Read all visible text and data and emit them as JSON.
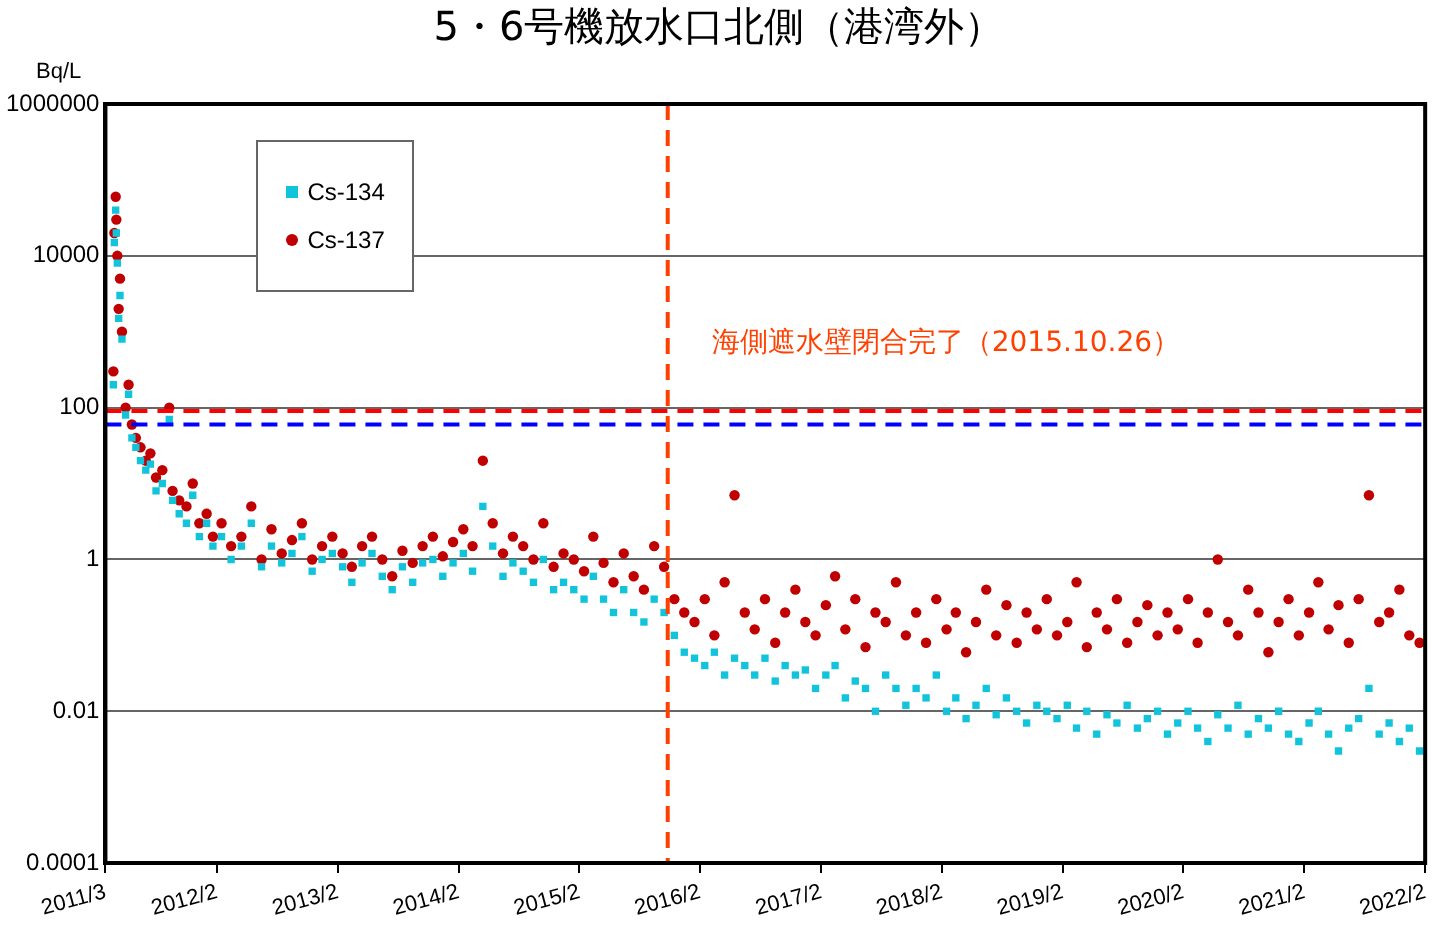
{
  "chart_data": {
    "type": "scatter",
    "title": "5・6号機放水口北側（港湾外）",
    "ylabel": "Bq/L",
    "log": "y",
    "grid": "y",
    "legend": "top left",
    "xlim": [
      "2011-03-01",
      "2022-02-01"
    ],
    "xticks": [
      {
        "value": "2011-03-01",
        "label": "2011/3"
      },
      {
        "value": "2012-02-01",
        "label": "2012/2"
      },
      {
        "value": "2013-02-01",
        "label": "2013/2"
      },
      {
        "value": "2014-02-01",
        "label": "2014/2"
      },
      {
        "value": "2015-02-01",
        "label": "2015/2"
      },
      {
        "value": "2016-02-01",
        "label": "2016/2"
      },
      {
        "value": "2017-02-01",
        "label": "2017/2"
      },
      {
        "value": "2018-02-01",
        "label": "2018/2"
      },
      {
        "value": "2019-02-01",
        "label": "2019/2"
      },
      {
        "value": "2020-02-01",
        "label": "2020/2"
      },
      {
        "value": "2021-02-01",
        "label": "2021/2"
      },
      {
        "value": "2022-02-01",
        "label": "2022/2"
      }
    ],
    "ylim": [
      0.0001,
      1000000
    ],
    "yticks": [
      0.0001,
      0.01,
      1,
      100,
      10000,
      1000000
    ],
    "x": [
      "2011-03-25",
      "2011-03-28",
      "2011-04-01",
      "2011-04-03",
      "2011-04-06",
      "2011-04-10",
      "2011-04-14",
      "2011-04-20",
      "2011-05-01",
      "2011-05-10",
      "2011-05-20",
      "2011-06-01",
      "2011-06-15",
      "2011-07-01",
      "2011-07-15",
      "2011-08-01",
      "2011-08-20",
      "2011-09-10",
      "2011-09-20",
      "2011-10-10",
      "2011-11-01",
      "2011-11-20",
      "2011-12-10",
      "2012-01-01",
      "2012-01-20",
      "2012-02-15",
      "2012-03-15",
      "2012-04-15",
      "2012-05-15",
      "2012-06-15",
      "2012-07-15",
      "2012-08-15",
      "2012-09-15",
      "2012-10-15",
      "2012-11-15",
      "2012-12-15",
      "2013-01-15",
      "2013-02-15",
      "2013-03-15",
      "2013-04-15",
      "2013-05-15",
      "2013-06-15",
      "2013-07-15",
      "2013-08-15",
      "2013-09-15",
      "2013-10-15",
      "2013-11-15",
      "2013-12-15",
      "2014-01-15",
      "2014-02-15",
      "2014-03-15",
      "2014-04-15",
      "2014-05-15",
      "2014-06-15",
      "2014-07-15",
      "2014-08-15",
      "2014-09-15",
      "2014-10-15",
      "2014-11-15",
      "2014-12-15",
      "2015-01-15",
      "2015-02-15",
      "2015-03-15",
      "2015-04-15",
      "2015-05-15",
      "2015-06-15",
      "2015-07-15",
      "2015-08-15",
      "2015-09-15",
      "2015-10-15",
      "2015-11-15",
      "2015-12-15",
      "2016-01-15",
      "2016-02-15",
      "2016-03-15",
      "2016-04-15",
      "2016-05-15",
      "2016-06-15",
      "2016-07-15",
      "2016-08-15",
      "2016-09-15",
      "2016-10-15",
      "2016-11-15",
      "2016-12-15",
      "2017-01-15",
      "2017-02-15",
      "2017-03-15",
      "2017-04-15",
      "2017-05-15",
      "2017-06-15",
      "2017-07-15",
      "2017-08-15",
      "2017-09-15",
      "2017-10-15",
      "2017-11-15",
      "2017-12-15",
      "2018-01-15",
      "2018-02-15",
      "2018-03-15",
      "2018-04-15",
      "2018-05-15",
      "2018-06-15",
      "2018-07-15",
      "2018-08-15",
      "2018-09-15",
      "2018-10-15",
      "2018-11-15",
      "2018-12-15",
      "2019-01-15",
      "2019-02-15",
      "2019-03-15",
      "2019-04-15",
      "2019-05-15",
      "2019-06-15",
      "2019-07-15",
      "2019-08-15",
      "2019-09-15",
      "2019-10-15",
      "2019-11-15",
      "2019-12-15",
      "2020-01-15",
      "2020-02-15",
      "2020-03-15",
      "2020-04-15",
      "2020-05-15",
      "2020-06-15",
      "2020-07-15",
      "2020-08-15",
      "2020-09-15",
      "2020-10-15",
      "2020-11-15",
      "2020-12-15",
      "2021-01-15",
      "2021-02-15",
      "2021-03-15",
      "2021-04-15",
      "2021-05-15",
      "2021-06-15",
      "2021-07-15",
      "2021-08-15",
      "2021-09-15",
      "2021-10-15",
      "2021-11-15",
      "2021-12-15",
      "2022-01-15"
    ],
    "series": [
      {
        "name": "Cs-134",
        "color": "#11c4dc",
        "marker": "square",
        "values": [
          200,
          15000,
          40000,
          20000,
          8000,
          1500,
          3000,
          800,
          80,
          150,
          40,
          30,
          20,
          15,
          18,
          8,
          10,
          70,
          6,
          4,
          3,
          7,
          2,
          3,
          1.5,
          2,
          1,
          1.5,
          3,
          0.8,
          1.5,
          0.9,
          1.2,
          2,
          0.7,
          1,
          1.2,
          0.8,
          0.5,
          0.9,
          1.2,
          0.6,
          0.4,
          0.8,
          0.5,
          0.9,
          1,
          0.6,
          0.9,
          1.2,
          0.7,
          5,
          1.5,
          0.6,
          0.9,
          0.7,
          0.5,
          1,
          0.4,
          0.5,
          0.4,
          0.3,
          0.6,
          0.3,
          0.2,
          0.4,
          0.2,
          0.15,
          0.3,
          0.2,
          0.1,
          0.06,
          0.05,
          0.04,
          0.06,
          0.03,
          0.05,
          0.04,
          0.03,
          0.05,
          0.025,
          0.04,
          0.03,
          0.035,
          0.02,
          0.03,
          0.04,
          0.015,
          0.025,
          0.02,
          0.01,
          0.03,
          0.02,
          0.012,
          0.02,
          0.015,
          0.03,
          0.01,
          0.015,
          0.008,
          0.012,
          0.02,
          0.009,
          0.015,
          0.01,
          0.007,
          0.012,
          0.01,
          0.008,
          0.012,
          0.006,
          0.01,
          0.005,
          0.009,
          0.007,
          0.012,
          0.006,
          0.008,
          0.01,
          0.005,
          0.007,
          0.01,
          0.006,
          0.004,
          0.009,
          0.006,
          0.012,
          0.005,
          0.008,
          0.006,
          0.01,
          0.005,
          0.004,
          0.007,
          0.01,
          0.005,
          0.003,
          0.006,
          0.008,
          0.02,
          0.005,
          0.007,
          0.004,
          0.006,
          0.003
        ]
      },
      {
        "name": "Cs-137",
        "color": "#c00000",
        "marker": "circle",
        "values": [
          300,
          20000,
          60000,
          30000,
          10000,
          2000,
          5000,
          1000,
          100,
          200,
          60,
          40,
          30,
          20,
          25,
          12,
          15,
          100,
          8,
          6,
          5,
          10,
          3,
          4,
          2,
          3,
          1.5,
          2,
          5,
          1,
          2.5,
          1.2,
          1.8,
          3,
          1,
          1.5,
          2,
          1.2,
          0.8,
          1.5,
          2,
          1,
          0.6,
          1.3,
          0.9,
          1.5,
          2,
          1.1,
          1.7,
          2.5,
          1.5,
          20,
          3,
          1.2,
          2,
          1.5,
          1,
          3,
          0.8,
          1.2,
          1,
          0.7,
          2,
          0.9,
          0.5,
          1.2,
          0.6,
          0.4,
          1.5,
          0.8,
          0.3,
          0.2,
          0.15,
          0.3,
          0.1,
          0.5,
          7,
          0.2,
          0.12,
          0.3,
          0.08,
          0.2,
          0.4,
          0.15,
          0.1,
          0.25,
          0.6,
          0.12,
          0.3,
          0.07,
          0.2,
          0.15,
          0.5,
          0.1,
          0.2,
          0.08,
          0.3,
          0.12,
          0.2,
          0.06,
          0.15,
          0.4,
          0.1,
          0.25,
          0.08,
          0.2,
          0.12,
          0.3,
          0.1,
          0.15,
          0.5,
          0.07,
          0.2,
          0.12,
          0.3,
          0.08,
          0.15,
          0.25,
          0.1,
          0.2,
          0.12,
          0.3,
          0.08,
          0.2,
          1,
          0.15,
          0.1,
          0.4,
          0.2,
          0.06,
          0.15,
          0.3,
          0.1,
          0.2,
          0.5,
          0.12,
          0.25,
          0.08,
          0.3,
          7,
          0.15,
          0.2,
          0.4,
          0.1,
          0.08
        ]
      }
    ],
    "ref_lines": [
      {
        "axis": "y",
        "value": 90,
        "color": "#ff0000",
        "line_style": "dashed"
      },
      {
        "axis": "y",
        "value": 60,
        "color": "#0000ff",
        "line_style": "dashed"
      },
      {
        "axis": "x",
        "value": "2015-10-26",
        "color": "#ff4000",
        "line_style": "dashed",
        "label": "海側遮水壁閉合完了（2015.10.26）"
      }
    ]
  }
}
